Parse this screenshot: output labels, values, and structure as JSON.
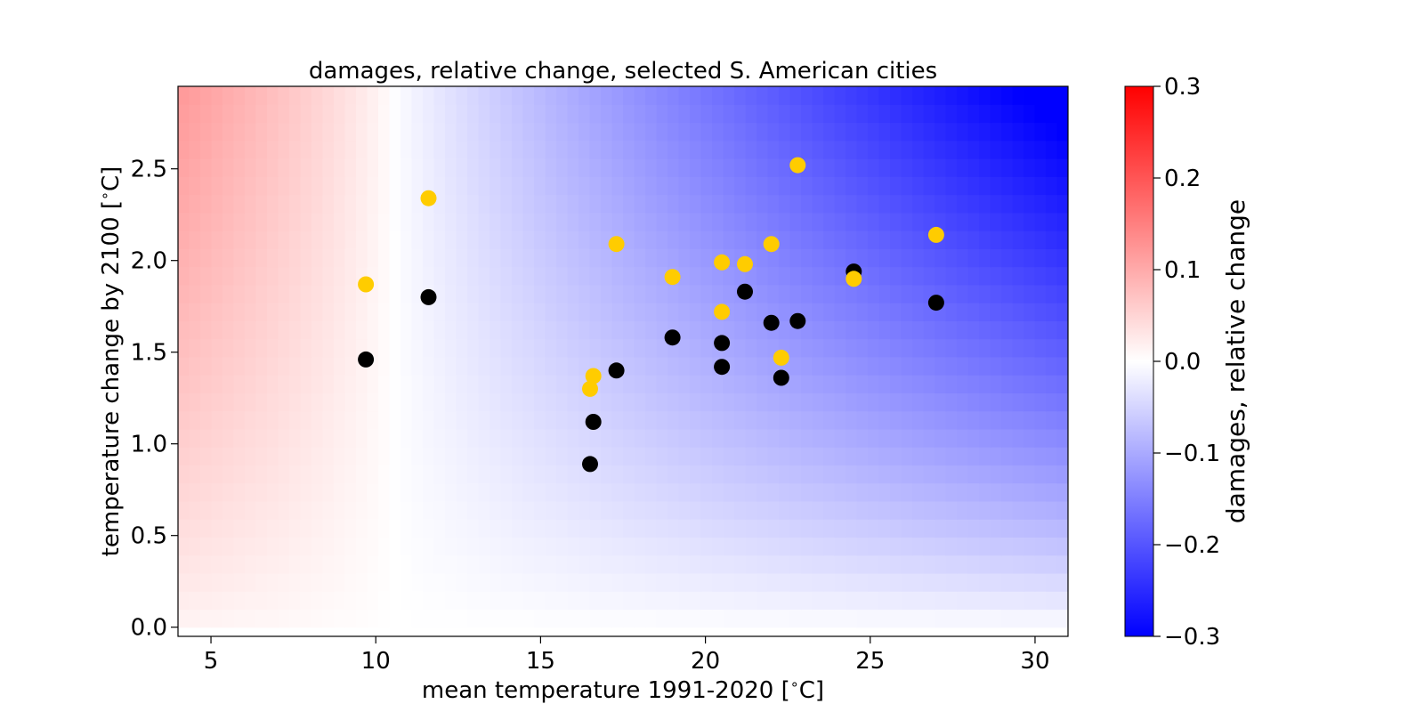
{
  "chart_data": {
    "type": "scatter",
    "title": "damages, relative change, selected S. American cities",
    "xlabel": "mean temperature 1991-2020 [$^\\circ$C]",
    "xlabel_prefix": "mean temperature 1991-2020 [",
    "xlabel_suffix": "C]",
    "ylabel": "temperature change by 2100 [$^\\circ$C]",
    "ylabel_prefix": "temperature change by 2100 [",
    "ylabel_suffix": "C]",
    "degree_symbol": "∘",
    "xlim": [
      4,
      31
    ],
    "ylim": [
      -0.05,
      2.95
    ],
    "x_ticks": [
      5,
      10,
      15,
      20,
      25,
      30
    ],
    "x_tick_labels": [
      "5",
      "10",
      "15",
      "20",
      "25",
      "30"
    ],
    "y_ticks": [
      0.0,
      0.5,
      1.0,
      1.5,
      2.0,
      2.5
    ],
    "y_tick_labels": [
      "0.0",
      "0.5",
      "1.0",
      "1.5",
      "2.0",
      "2.5"
    ],
    "grid": false,
    "background": {
      "type": "heatmap",
      "colormap": "bwr",
      "vmin": -0.3,
      "vmax": 0.3,
      "x_range": [
        4,
        31
      ],
      "y_range": [
        0,
        2.95
      ]
    },
    "colorbar": {
      "label": "damages, relative change",
      "ticks": [
        0.3,
        0.2,
        0.1,
        0.0,
        -0.1,
        -0.2,
        -0.3
      ],
      "tick_labels": [
        "0.3",
        "0.2",
        "0.1",
        "0.0",
        "−0.1",
        "−0.2",
        "−0.3"
      ]
    },
    "series": [
      {
        "color": "#000000",
        "x": [
          9.7,
          11.6,
          16.5,
          16.6,
          17.3,
          19.0,
          20.5,
          20.5,
          21.2,
          22.0,
          22.3,
          22.8,
          24.5,
          27.0
        ],
        "y": [
          1.46,
          1.8,
          0.89,
          1.12,
          1.4,
          1.58,
          1.42,
          1.55,
          1.83,
          1.66,
          1.36,
          1.67,
          1.94,
          1.77
        ]
      },
      {
        "color": "#FFCC00",
        "x": [
          9.7,
          11.6,
          16.5,
          16.6,
          17.3,
          19.0,
          20.5,
          20.5,
          21.2,
          22.0,
          22.3,
          22.8,
          24.5,
          27.0
        ],
        "y": [
          1.87,
          2.34,
          1.3,
          1.37,
          2.09,
          1.91,
          1.72,
          1.99,
          1.98,
          2.09,
          1.47,
          2.52,
          1.9,
          2.14
        ]
      }
    ]
  }
}
